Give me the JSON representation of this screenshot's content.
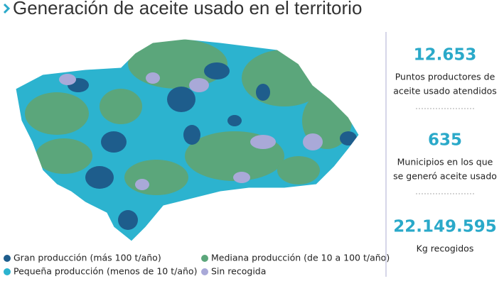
{
  "title": "Generación de aceite usado en el territorio",
  "legend": [
    {
      "label": "Gran producción (más 100 t/año)",
      "color": "#1e5d8c"
    },
    {
      "label": "Mediana producción (de 10 a 100 t/año)",
      "color": "#5ba67b"
    },
    {
      "label": "Pequeña producción (menos de 10 t/año)",
      "color": "#2cb3cf"
    },
    {
      "label": "Sin recogida",
      "color": "#a9a9d8"
    }
  ],
  "stats": [
    {
      "value": "12.653",
      "lines": [
        "Puntos productores de",
        "aceite usado atendidos"
      ]
    },
    {
      "value": "635",
      "lines": [
        "Municipios en los que",
        "se generó aceite usado"
      ]
    },
    {
      "value": "22.149.595",
      "lines": [
        "Kg recogidos"
      ]
    }
  ]
}
